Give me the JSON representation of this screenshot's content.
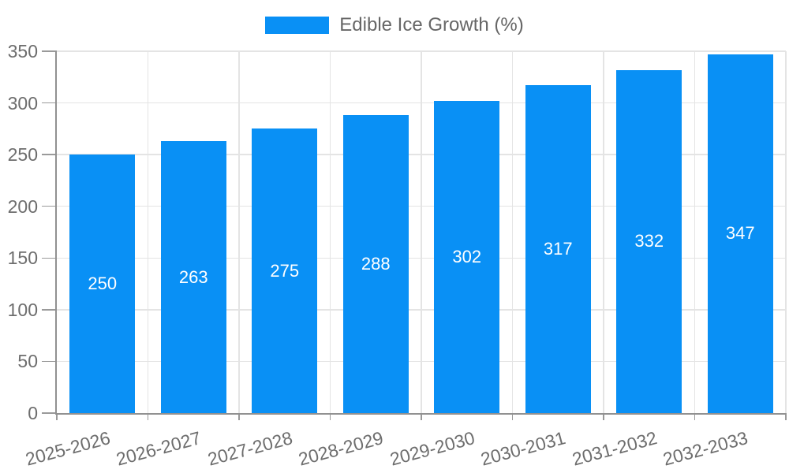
{
  "legend": {
    "label": "Edible Ice Growth (%)"
  },
  "colors": {
    "bar": "#0990f5",
    "axis": "#919191",
    "grid": "#e4e4e4",
    "tick_mark": "#9a9a9a",
    "tick_label": "#6d6d6d",
    "legend_text": "#666666",
    "bar_label": "#ffffff",
    "background": "#ffffff"
  },
  "chart_data": {
    "type": "bar",
    "title": "",
    "xlabel": "",
    "ylabel": "",
    "categories": [
      "2025-2026",
      "2026-2027",
      "2027-2028",
      "2028-2029",
      "2029-2030",
      "2030-2031",
      "2031-2032",
      "2032-2033"
    ],
    "series": [
      {
        "name": "Edible Ice Growth (%)",
        "values": [
          250,
          263,
          275,
          288,
          302,
          317,
          332,
          347
        ]
      }
    ],
    "ylim": [
      0,
      350
    ],
    "yticks": [
      0,
      50,
      100,
      150,
      200,
      250,
      300,
      350
    ],
    "grid": true,
    "legend_position": "top",
    "value_labels": "inside-center",
    "x_tick_rotation_deg": -15
  }
}
